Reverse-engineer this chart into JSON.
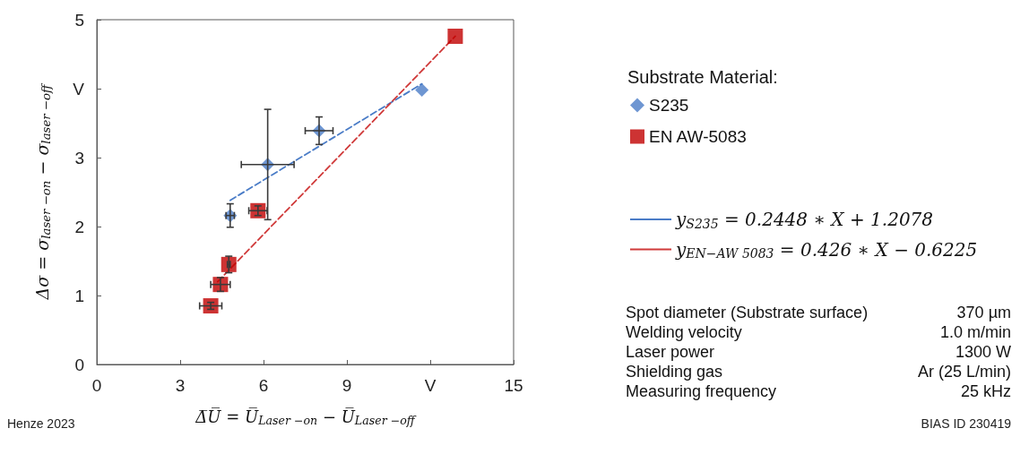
{
  "chart_data": {
    "type": "scatter",
    "xlabel": "Δ̅U̅ = U̅$_{Laser −on}$ − U̅$_{Laser −off}$",
    "ylabel": "Δσ = σ$_{laser −on}$ − σ$_{laser −off}$",
    "legend_title": "Substrate Material:",
    "legend": "right",
    "grid": false,
    "xlim": [
      0,
      15
    ],
    "xticks": [
      0,
      3,
      6,
      9,
      {
        "value": 12,
        "label": "V"
      },
      15
    ],
    "ylim": [
      0,
      5
    ],
    "yticks": [
      0,
      1,
      2,
      3,
      {
        "value": 4,
        "label": "V"
      },
      5
    ],
    "series": [
      {
        "name": "S235",
        "marker": "diamond",
        "color": "#4a7cc7",
        "x": [
          4.8,
          6.15,
          8.0,
          11.7
        ],
        "values": [
          2.16,
          2.9,
          3.39,
          3.98
        ],
        "errors": [
          0.17,
          0.8,
          0.2,
          null
        ],
        "xerrors": [
          0.15,
          0.95,
          0.5,
          null
        ]
      },
      {
        "name": "EN AW-5083",
        "marker": "square",
        "color": "#c00000",
        "x": [
          4.1,
          4.45,
          4.75,
          5.8,
          12.9
        ],
        "values": [
          0.85,
          1.16,
          1.45,
          2.23,
          4.76
        ],
        "errors": [
          0.05,
          0.1,
          0.12,
          0.07,
          null
        ],
        "xerrors": [
          0.4,
          0.35,
          0.05,
          0.33,
          null
        ]
      },
      {
        "name": "y$_{S235}$ = 0.2448 ∗ X + 1.2078",
        "type": "line",
        "marker": "none",
        "line_style": "dashed",
        "color": "#4a7cc7",
        "x": [
          4.8,
          11.7
        ],
        "values": [
          2.38,
          4.07
        ]
      },
      {
        "name": "y$_{EN−AW 5083}$ = 0.426 ∗ X − 0.6225",
        "type": "line",
        "marker": "none",
        "line_style": "dashed",
        "color": "#d03a3a",
        "x": [
          4.35,
          12.9
        ],
        "values": [
          1.2,
          4.76
        ]
      }
    ],
    "annotations": [
      "Henze 2023",
      "Spot diameter (Substrate surface)",
      "370 µm",
      "Welding velocity",
      "1.0 m/min",
      "Laser power",
      "1300 W",
      "Shielding gas",
      "Ar (25 L/min)",
      "Measuring frequency",
      "25 kHz",
      "BIAS ID 230419"
    ]
  }
}
